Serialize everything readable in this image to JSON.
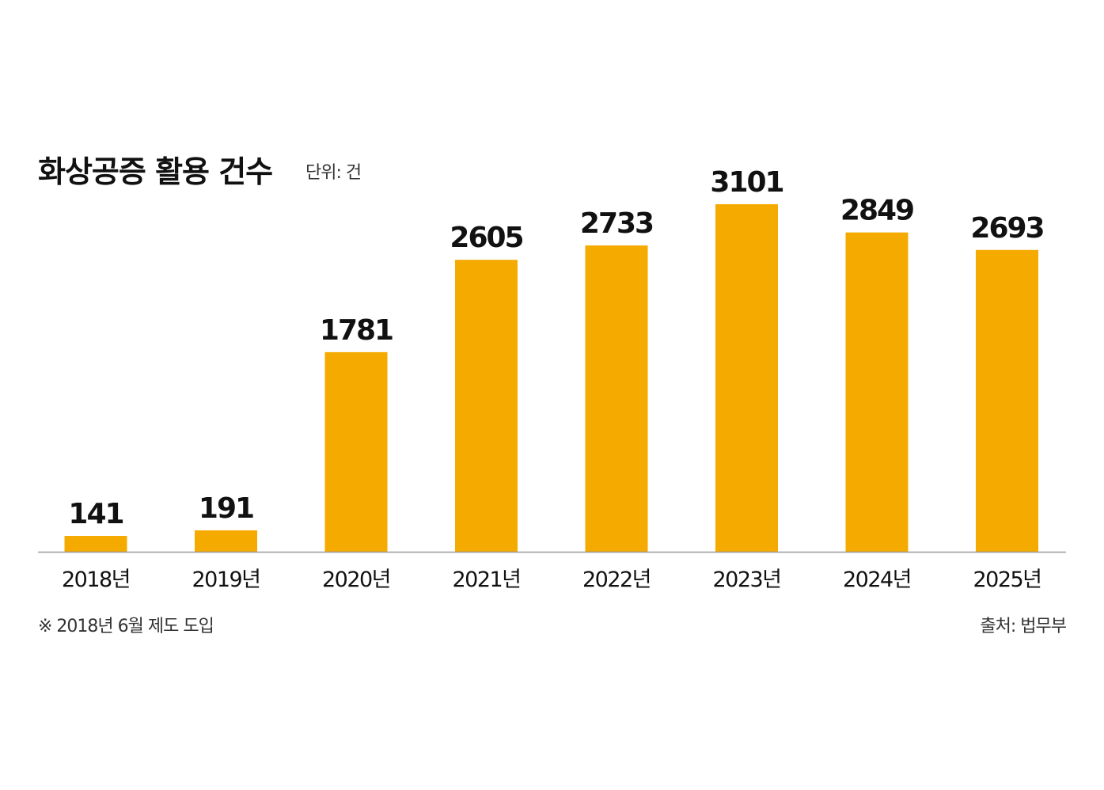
{
  "chart_data": {
    "type": "bar",
    "title": "화상공증 활용 건수",
    "unit": "단위: 건",
    "categories": [
      "2018년",
      "2019년",
      "2020년",
      "2021년",
      "2022년",
      "2023년",
      "2024년",
      "2025년"
    ],
    "values": [
      141,
      191,
      1781,
      2605,
      2733,
      3101,
      2849,
      2693
    ],
    "ylim": [
      0,
      3101
    ],
    "grid": false,
    "legend": "none",
    "bar_color": "#F5AA00",
    "axis_color": "#999999",
    "note": "※ 2018년 6월 제도 도입",
    "source": "출처: 법무부"
  }
}
